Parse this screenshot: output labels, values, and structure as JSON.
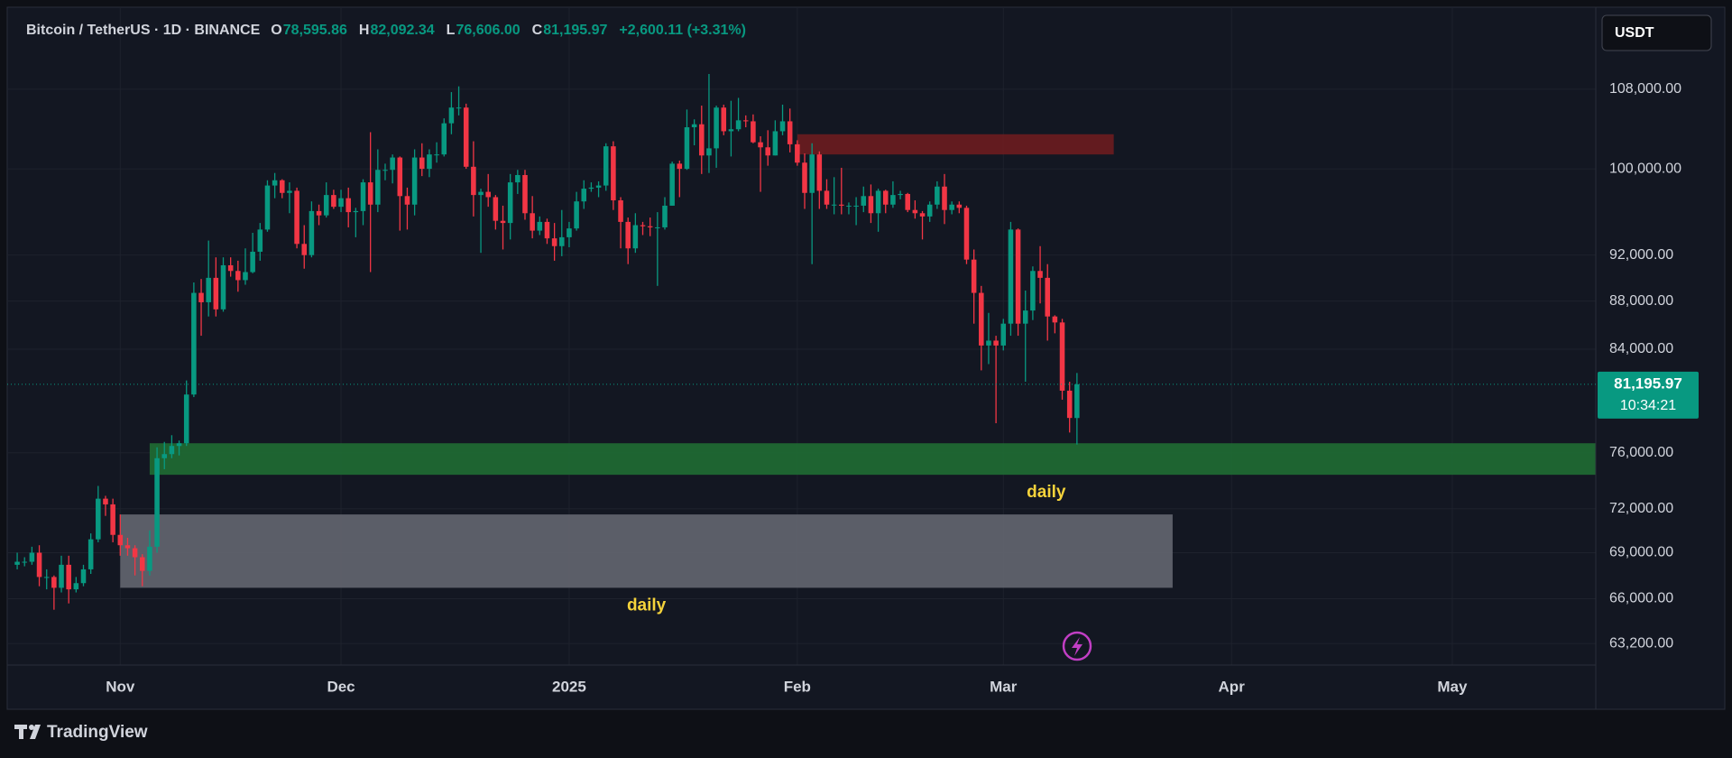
{
  "chart_data": {
    "type": "candlestick",
    "title": "Bitcoin / TetherUS · 1D · BINANCE",
    "ohlc_legend": [
      {
        "key": "O",
        "label": "78,595.86"
      },
      {
        "key": "H",
        "label": "82,092.34"
      },
      {
        "key": "L",
        "label": "76,606.00"
      },
      {
        "key": "C",
        "label": "81,195.97"
      }
    ],
    "change_label": "+2,600.11 (+3.31%)",
    "currency": "USDT",
    "brand": "TradingView",
    "up_color": "#089981",
    "down_color": "#f23645",
    "log_scale": true,
    "grid": true,
    "xlim": [
      -0.5,
      214.5
    ],
    "ylim": [
      61900,
      116500
    ],
    "xticks": [
      {
        "value": 14,
        "label": "Nov"
      },
      {
        "value": 44,
        "label": "Dec"
      },
      {
        "value": 75,
        "label": "2025"
      },
      {
        "value": 106,
        "label": "Feb"
      },
      {
        "value": 134,
        "label": "Mar"
      },
      {
        "value": 165,
        "label": "Apr"
      },
      {
        "value": 195,
        "label": "May"
      }
    ],
    "yticks": [
      {
        "value": 108000,
        "label": "108,000.00"
      },
      {
        "value": 100000,
        "label": "100,000.00"
      },
      {
        "value": 92000,
        "label": "92,000.00"
      },
      {
        "value": 88000,
        "label": "88,000.00"
      },
      {
        "value": 84000,
        "label": "84,000.00"
      },
      {
        "value": 76000,
        "label": "76,000.00"
      },
      {
        "value": 72000,
        "label": "72,000.00"
      },
      {
        "value": 69000,
        "label": "69,000.00"
      },
      {
        "value": 66000,
        "label": "66,000.00"
      },
      {
        "value": 63200,
        "label": "63,200.00"
      }
    ],
    "price_tag": {
      "value": 81195.97,
      "label": "81,195.97",
      "timer": "10:34:21"
    },
    "zones": [
      {
        "from": 106,
        "to": 149,
        "low": 101400,
        "high": 103400,
        "color": "#6a1c20"
      },
      {
        "from": 18,
        "to": 214.5,
        "low": 74400,
        "high": 76700,
        "color": "#1f6b33",
        "label": "daily"
      },
      {
        "from": 14,
        "to": 157,
        "low": 66700,
        "high": 71600,
        "color": "#62656f",
        "label": "daily"
      }
    ],
    "open": [
      68200,
      68400,
      68400,
      69000,
      67400,
      67400,
      66700,
      68200,
      66600,
      67000,
      67900,
      69900,
      72700,
      72300,
      70200,
      69500,
      69300,
      68700,
      67800,
      69400,
      75600,
      75900,
      76500,
      76700,
      80400,
      88700,
      87900,
      90000,
      87300,
      91100,
      90600,
      89800,
      90500,
      92300,
      94300,
      98400,
      98900,
      97700,
      97900,
      93000,
      92000,
      96000,
      95600,
      97500,
      96400,
      97200,
      95900,
      96000,
      98700,
      96600,
      99900,
      99900,
      101100,
      97400,
      96600,
      101100,
      100000,
      101400,
      101400,
      104500,
      106100,
      106100,
      100200,
      97500,
      97800,
      97300,
      95100,
      94900,
      98700,
      99400,
      95800,
      94200,
      95000,
      93500,
      92800,
      93600,
      94400,
      96900,
      98100,
      98200,
      98400,
      102200,
      97000,
      95000,
      92600,
      94700,
      94600,
      94500,
      94500,
      96500,
      100500,
      100000,
      104100,
      104400,
      101300,
      102000,
      106100,
      103700,
      103900,
      104800,
      104700,
      102600,
      102100,
      101300,
      103700,
      104700,
      102400,
      100600,
      97700,
      101400,
      97900,
      96600,
      96600,
      96500,
      96500,
      96500,
      97400,
      95800,
      97900,
      96600,
      97500,
      97600,
      96100,
      95800,
      95500,
      96600,
      98300,
      96100,
      96600,
      96300,
      91600,
      88700,
      84300,
      84700,
      84300,
      86100,
      94300,
      86100,
      87200,
      90600,
      90000,
      86700,
      86200,
      80700,
      78595.86
    ],
    "high": [
      69000,
      68700,
      69400,
      69500,
      67900,
      67500,
      68800,
      68800,
      67400,
      68200,
      70300,
      73600,
      72900,
      72700,
      71600,
      70000,
      69500,
      68900,
      70500,
      76400,
      76800,
      77300,
      76900,
      81500,
      89600,
      89900,
      93300,
      91800,
      91800,
      91800,
      91500,
      92600,
      94000,
      94900,
      98900,
      99600,
      99000,
      98700,
      98200,
      94700,
      96900,
      96600,
      98700,
      98000,
      98000,
      98200,
      96300,
      99000,
      103600,
      101900,
      100500,
      101400,
      101200,
      98200,
      101900,
      102500,
      101900,
      102600,
      105000,
      107700,
      108300,
      106500,
      102700,
      98100,
      99500,
      97500,
      96500,
      99500,
      99900,
      99900,
      97400,
      95500,
      95300,
      94900,
      96100,
      95000,
      97800,
      98900,
      98700,
      98800,
      102500,
      102700,
      97300,
      95400,
      95800,
      95000,
      95400,
      95900,
      97300,
      100700,
      100800,
      105900,
      104900,
      106300,
      109600,
      106300,
      106400,
      106800,
      107100,
      105300,
      105400,
      103200,
      103800,
      104800,
      106400,
      106000,
      102800,
      101500,
      102500,
      101700,
      99000,
      99200,
      100100,
      96800,
      97300,
      98300,
      98500,
      98100,
      98000,
      98800,
      97900,
      97700,
      97000,
      96000,
      96900,
      98800,
      99500,
      96900,
      96900,
      96500,
      92500,
      89300,
      87000,
      85100,
      86500,
      95000,
      94400,
      88900,
      91000,
      92800,
      91200,
      86800,
      86500,
      81400,
      82092.34
    ],
    "low": [
      67900,
      68100,
      68200,
      66800,
      66600,
      65300,
      66400,
      65700,
      66400,
      66800,
      67600,
      69700,
      71500,
      69700,
      68800,
      68800,
      67500,
      66800,
      67500,
      69000,
      74800,
      75600,
      75800,
      76500,
      80200,
      85100,
      86700,
      86700,
      87100,
      90100,
      88800,
      89400,
      90400,
      91500,
      94100,
      97200,
      97200,
      95800,
      92600,
      90800,
      91800,
      94700,
      95400,
      96200,
      95900,
      94500,
      93600,
      94700,
      90500,
      95900,
      98900,
      98600,
      94200,
      94300,
      95600,
      99300,
      99200,
      100600,
      101200,
      103400,
      105300,
      100000,
      95500,
      92200,
      96400,
      94300,
      92500,
      93400,
      97600,
      95200,
      93500,
      93800,
      93000,
      91500,
      91900,
      92700,
      94200,
      96200,
      97800,
      97300,
      97900,
      96100,
      92600,
      91200,
      92200,
      93800,
      93700,
      89300,
      94300,
      96500,
      97300,
      99900,
      102300,
      99500,
      99600,
      100100,
      103300,
      101200,
      103700,
      104100,
      102500,
      97800,
      100300,
      101300,
      103300,
      101600,
      100300,
      96200,
      91200,
      96200,
      96200,
      95700,
      95700,
      95700,
      94700,
      95900,
      94900,
      94100,
      95800,
      96300,
      97100,
      95900,
      95300,
      93400,
      95000,
      96200,
      94800,
      95700,
      95800,
      91200,
      86100,
      82300,
      82800,
      78200,
      83900,
      85100,
      85100,
      81400,
      86400,
      87800,
      84700,
      85300,
      80000,
      77500,
      76606
    ],
    "close": [
      68400,
      68400,
      69000,
      67400,
      67400,
      66700,
      68200,
      66600,
      67000,
      67900,
      69900,
      72700,
      72300,
      70200,
      69500,
      69300,
      68700,
      67800,
      69400,
      75600,
      75900,
      76500,
      76700,
      80400,
      88700,
      87900,
      90000,
      87300,
      91100,
      90600,
      89800,
      90500,
      92300,
      94300,
      98400,
      98900,
      97700,
      97900,
      93000,
      92000,
      96000,
      95600,
      97500,
      96400,
      97200,
      95900,
      96000,
      98700,
      96600,
      99900,
      99900,
      101100,
      97400,
      96600,
      101100,
      100000,
      101400,
      101400,
      104500,
      106100,
      106100,
      100200,
      97500,
      97800,
      97300,
      95100,
      94900,
      98700,
      99400,
      95800,
      94200,
      95000,
      93500,
      92800,
      93600,
      94400,
      96900,
      98100,
      98200,
      98400,
      102200,
      97000,
      95000,
      92600,
      94700,
      94600,
      94500,
      94500,
      96500,
      100500,
      100000,
      104100,
      104400,
      101300,
      102000,
      106100,
      103700,
      103900,
      104800,
      104700,
      102600,
      102100,
      101300,
      103700,
      104700,
      102400,
      100600,
      97700,
      101400,
      97900,
      96600,
      96600,
      96500,
      96500,
      96500,
      97400,
      95800,
      97900,
      96600,
      97500,
      97600,
      96100,
      95800,
      95500,
      96600,
      98300,
      96100,
      96600,
      96300,
      91600,
      88700,
      84300,
      84700,
      84300,
      86100,
      94300,
      86100,
      87200,
      90600,
      90000,
      86700,
      86200,
      80700,
      78600,
      81195.97
    ]
  }
}
